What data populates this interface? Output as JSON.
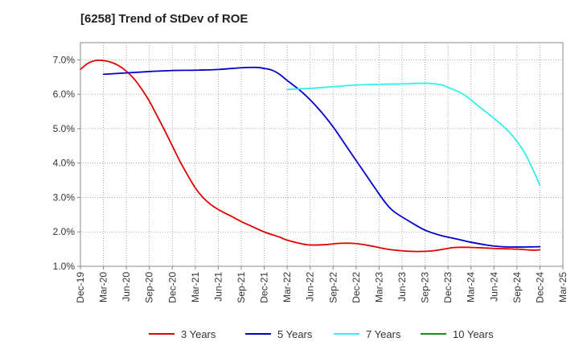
{
  "chart_data": {
    "type": "line",
    "title": "[6258]  Trend of StDev of ROE",
    "xlabel": "",
    "ylabel": "",
    "x_ticks": [
      "Dec-19",
      "Mar-20",
      "Jun-20",
      "Sep-20",
      "Dec-20",
      "Mar-21",
      "Jun-21",
      "Sep-21",
      "Dec-21",
      "Mar-22",
      "Jun-22",
      "Sep-22",
      "Dec-22",
      "Mar-23",
      "Jun-23",
      "Sep-23",
      "Dec-23",
      "Mar-24",
      "Jun-24",
      "Sep-24",
      "Dec-24",
      "Mar-25"
    ],
    "y_ticks": [
      "1.0%",
      "2.0%",
      "3.0%",
      "4.0%",
      "5.0%",
      "6.0%",
      "7.0%"
    ],
    "ylim": [
      1.0,
      7.5
    ],
    "grid": true,
    "legend_position": "bottom",
    "series": [
      {
        "name": "3 Years",
        "color": "#e00000",
        "points": [
          [
            "Dec-19",
            6.72
          ],
          [
            "Jan-20",
            6.9
          ],
          [
            "Feb-20",
            6.98
          ],
          [
            "Mar-20",
            6.98
          ],
          [
            "Apr-20",
            6.93
          ],
          [
            "May-20",
            6.83
          ],
          [
            "Jun-20",
            6.67
          ],
          [
            "Jul-20",
            6.45
          ],
          [
            "Aug-20",
            6.15
          ],
          [
            "Sep-20",
            5.8
          ],
          [
            "Oct-20",
            5.38
          ],
          [
            "Nov-20",
            4.95
          ],
          [
            "Dec-20",
            4.5
          ],
          [
            "Jan-21",
            4.05
          ],
          [
            "Feb-21",
            3.65
          ],
          [
            "Mar-21",
            3.28
          ],
          [
            "Apr-21",
            3.0
          ],
          [
            "May-21",
            2.8
          ],
          [
            "Jun-21",
            2.65
          ],
          [
            "Aug-21",
            2.42
          ],
          [
            "Sep-21",
            2.3
          ],
          [
            "Oct-21",
            2.2
          ],
          [
            "Dec-21",
            2.0
          ],
          [
            "Feb-22",
            1.85
          ],
          [
            "Mar-22",
            1.76
          ],
          [
            "May-22",
            1.65
          ],
          [
            "Jun-22",
            1.62
          ],
          [
            "Aug-22",
            1.63
          ],
          [
            "Oct-22",
            1.67
          ],
          [
            "Dec-22",
            1.66
          ],
          [
            "Feb-23",
            1.59
          ],
          [
            "Apr-23",
            1.5
          ],
          [
            "Jun-23",
            1.45
          ],
          [
            "Aug-23",
            1.43
          ],
          [
            "Oct-23",
            1.45
          ],
          [
            "Dec-23",
            1.52
          ],
          [
            "Jan-24",
            1.55
          ],
          [
            "Mar-24",
            1.55
          ],
          [
            "Jun-24",
            1.52
          ],
          [
            "Sep-24",
            1.5
          ],
          [
            "Nov-24",
            1.47
          ],
          [
            "Dec-24",
            1.48
          ]
        ]
      },
      {
        "name": "5 Years",
        "color": "#0000cc",
        "points": [
          [
            "Mar-20",
            6.58
          ],
          [
            "Jun-20",
            6.62
          ],
          [
            "Sep-20",
            6.66
          ],
          [
            "Dec-20",
            6.69
          ],
          [
            "Mar-21",
            6.7
          ],
          [
            "Jun-21",
            6.72
          ],
          [
            "Sep-21",
            6.77
          ],
          [
            "Nov-21",
            6.78
          ],
          [
            "Dec-21",
            6.75
          ],
          [
            "Jan-22",
            6.7
          ],
          [
            "Feb-22",
            6.58
          ],
          [
            "Mar-22",
            6.4
          ],
          [
            "May-22",
            6.05
          ],
          [
            "Jul-22",
            5.6
          ],
          [
            "Sep-22",
            5.05
          ],
          [
            "Nov-22",
            4.4
          ],
          [
            "Jan-23",
            3.75
          ],
          [
            "Mar-23",
            3.1
          ],
          [
            "Apr-23",
            2.8
          ],
          [
            "May-23",
            2.58
          ],
          [
            "Jul-23",
            2.3
          ],
          [
            "Sep-23",
            2.05
          ],
          [
            "Nov-23",
            1.9
          ],
          [
            "Jan-24",
            1.8
          ],
          [
            "Mar-24",
            1.7
          ],
          [
            "May-24",
            1.62
          ],
          [
            "Jul-24",
            1.57
          ],
          [
            "Sep-24",
            1.56
          ],
          [
            "Dec-24",
            1.57
          ]
        ]
      },
      {
        "name": "7 Years",
        "color": "#33eeee",
        "points": [
          [
            "Mar-22",
            6.14
          ],
          [
            "Jun-22",
            6.17
          ],
          [
            "Sep-22",
            6.22
          ],
          [
            "Dec-22",
            6.27
          ],
          [
            "Mar-23",
            6.29
          ],
          [
            "Jun-23",
            6.3
          ],
          [
            "Sep-23",
            6.32
          ],
          [
            "Nov-23",
            6.28
          ],
          [
            "Dec-23",
            6.2
          ],
          [
            "Feb-24",
            6.0
          ],
          [
            "Apr-24",
            5.65
          ],
          [
            "Jun-24",
            5.3
          ],
          [
            "Aug-24",
            4.9
          ],
          [
            "Oct-24",
            4.3
          ],
          [
            "Dec-24",
            3.36
          ]
        ]
      },
      {
        "name": "10 Years",
        "color": "#228822",
        "points": []
      }
    ]
  }
}
